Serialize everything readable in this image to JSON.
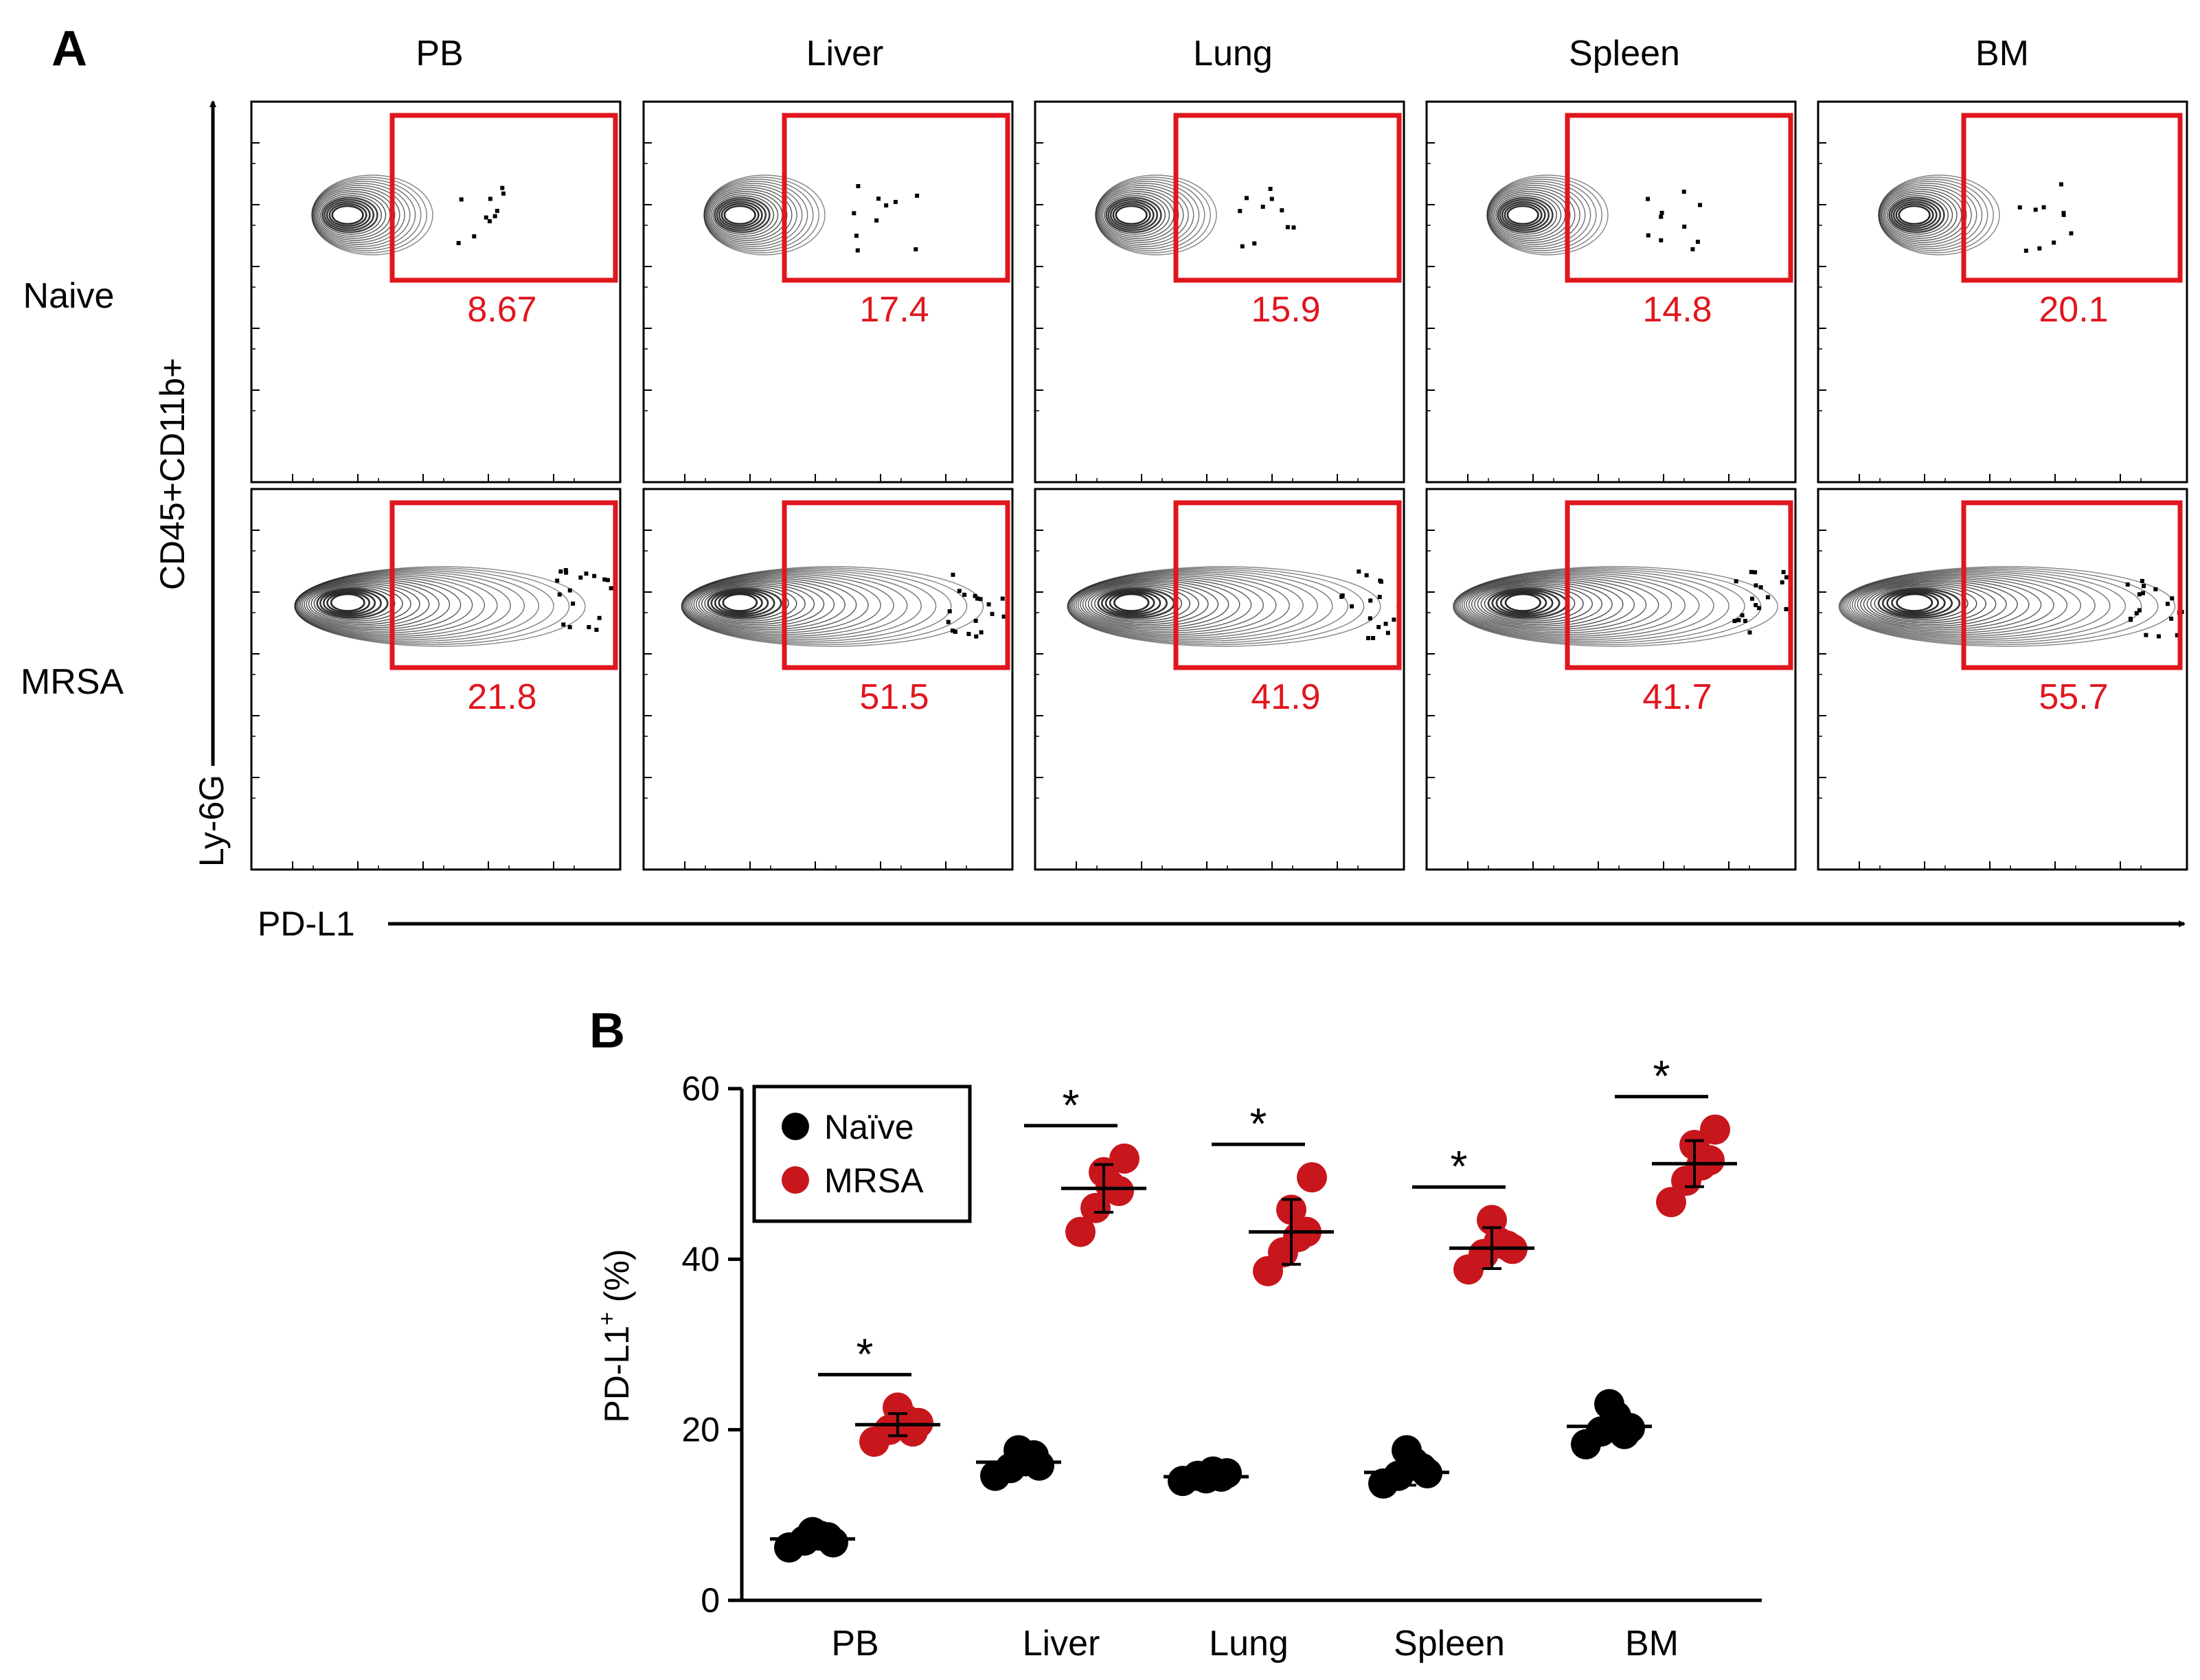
{
  "panel_labels": {
    "a": "A",
    "b": "B"
  },
  "colors": {
    "naive": "#000000",
    "mrsa": "#c8161d",
    "gate": "#e0161e",
    "contour": "#222222"
  },
  "chart_data": [
    {
      "type": "scatter",
      "subtype": "flow-cytometry-contour-grid",
      "title": "",
      "columns": [
        "PB",
        "Liver",
        "Lung",
        "Spleen",
        "BM"
      ],
      "rows": [
        "Naive",
        "MRSA"
      ],
      "xlabel": "PD-L1",
      "ylabel_top": "CD45+CD11b+",
      "ylabel_bottom": "Ly-6G",
      "gate_percent": {
        "Naive": [
          "8.67",
          "17.4",
          "15.9",
          "14.8",
          "20.1"
        ],
        "MRSA": [
          "21.8",
          "51.5",
          "41.9",
          "41.7",
          "55.7"
        ]
      }
    },
    {
      "type": "scatter",
      "subtype": "dot-plot-with-mean-and-sd",
      "title": "",
      "categories": [
        "PB",
        "Liver",
        "Lung",
        "Spleen",
        "BM"
      ],
      "ylabel": "PD-L1",
      "ylabel_sup": "+",
      "ylabel_unit": " (%)",
      "ylim": [
        0,
        60
      ],
      "yticks": [
        "0",
        "20",
        "40",
        "60"
      ],
      "legend": {
        "position": "top-left",
        "entries": [
          "Naïve",
          "MRSA"
        ]
      },
      "series": [
        {
          "name": "Naïve",
          "means": [
            7.2,
            16.2,
            14.5,
            15.0,
            20.4
          ],
          "sd": [
            0.9,
            1.4,
            0.6,
            1.5,
            1.6
          ],
          "values": [
            [
              6.2,
              7.0,
              7.6,
              8.0,
              6.8,
              7.4
            ],
            [
              14.6,
              15.5,
              16.3,
              17.6,
              15.8,
              17.0
            ],
            [
              14.0,
              14.6,
              15.1,
              14.3,
              14.9,
              14.5
            ],
            [
              13.7,
              14.6,
              16.2,
              17.6,
              14.9,
              15.5
            ],
            [
              18.3,
              19.8,
              21.6,
              23.0,
              20.2,
              19.5
            ]
          ]
        },
        {
          "name": "MRSA",
          "means": [
            20.6,
            48.3,
            43.2,
            41.3,
            51.2
          ],
          "sd": [
            1.3,
            2.8,
            3.8,
            2.4,
            2.7
          ],
          "values": [
            [
              18.6,
              20.0,
              21.3,
              22.6,
              20.8,
              19.8
            ],
            [
              43.2,
              46.0,
              48.6,
              50.2,
              51.8,
              48.0
            ],
            [
              38.6,
              40.8,
              42.6,
              45.8,
              49.6,
              43.2
            ],
            [
              38.8,
              40.6,
              42.0,
              44.6,
              41.2,
              41.6
            ],
            [
              46.7,
              49.2,
              51.0,
              53.4,
              55.2,
              51.6
            ]
          ]
        }
      ],
      "significance": [
        "*",
        "*",
        "*",
        "*",
        "*"
      ]
    }
  ]
}
